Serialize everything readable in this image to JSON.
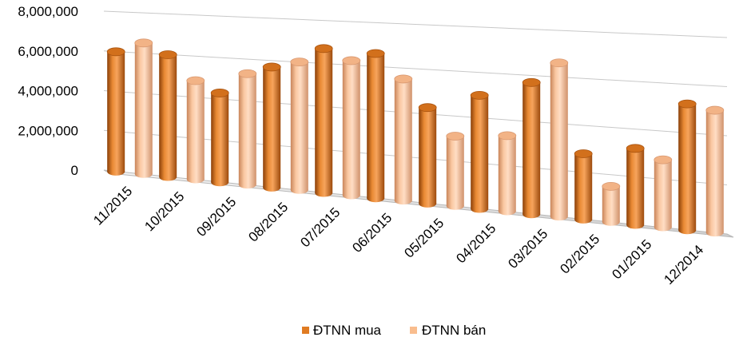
{
  "chart_data": {
    "type": "bar",
    "categories": [
      "11/2015",
      "10/2015",
      "09/2015",
      "08/2015",
      "07/2015",
      "06/2015",
      "05/2015",
      "04/2015",
      "03/2015",
      "02/2015",
      "01/2015",
      "12/2014"
    ],
    "series": [
      {
        "name": "ĐTNN mua",
        "values": [
          6000000,
          6000000,
          4300000,
          5700000,
          6700000,
          6600000,
          4300000,
          5000000,
          5700000,
          2800000,
          3200000,
          5200000
        ],
        "color": "#E07B22"
      },
      {
        "name": "ĐTNN bán",
        "values": [
          6500000,
          4800000,
          5300000,
          6000000,
          6200000,
          5500000,
          3100000,
          3300000,
          6600000,
          1500000,
          2800000,
          5000000
        ],
        "color": "#F9BD8E"
      }
    ],
    "yticks": [
      "0",
      "2,000,000",
      "4,000,000",
      "6,000,000",
      "8,000,000"
    ],
    "ylim": [
      0,
      8000000
    ],
    "legend_position": "bottom",
    "grid": true,
    "style": "3d-cylinder"
  }
}
